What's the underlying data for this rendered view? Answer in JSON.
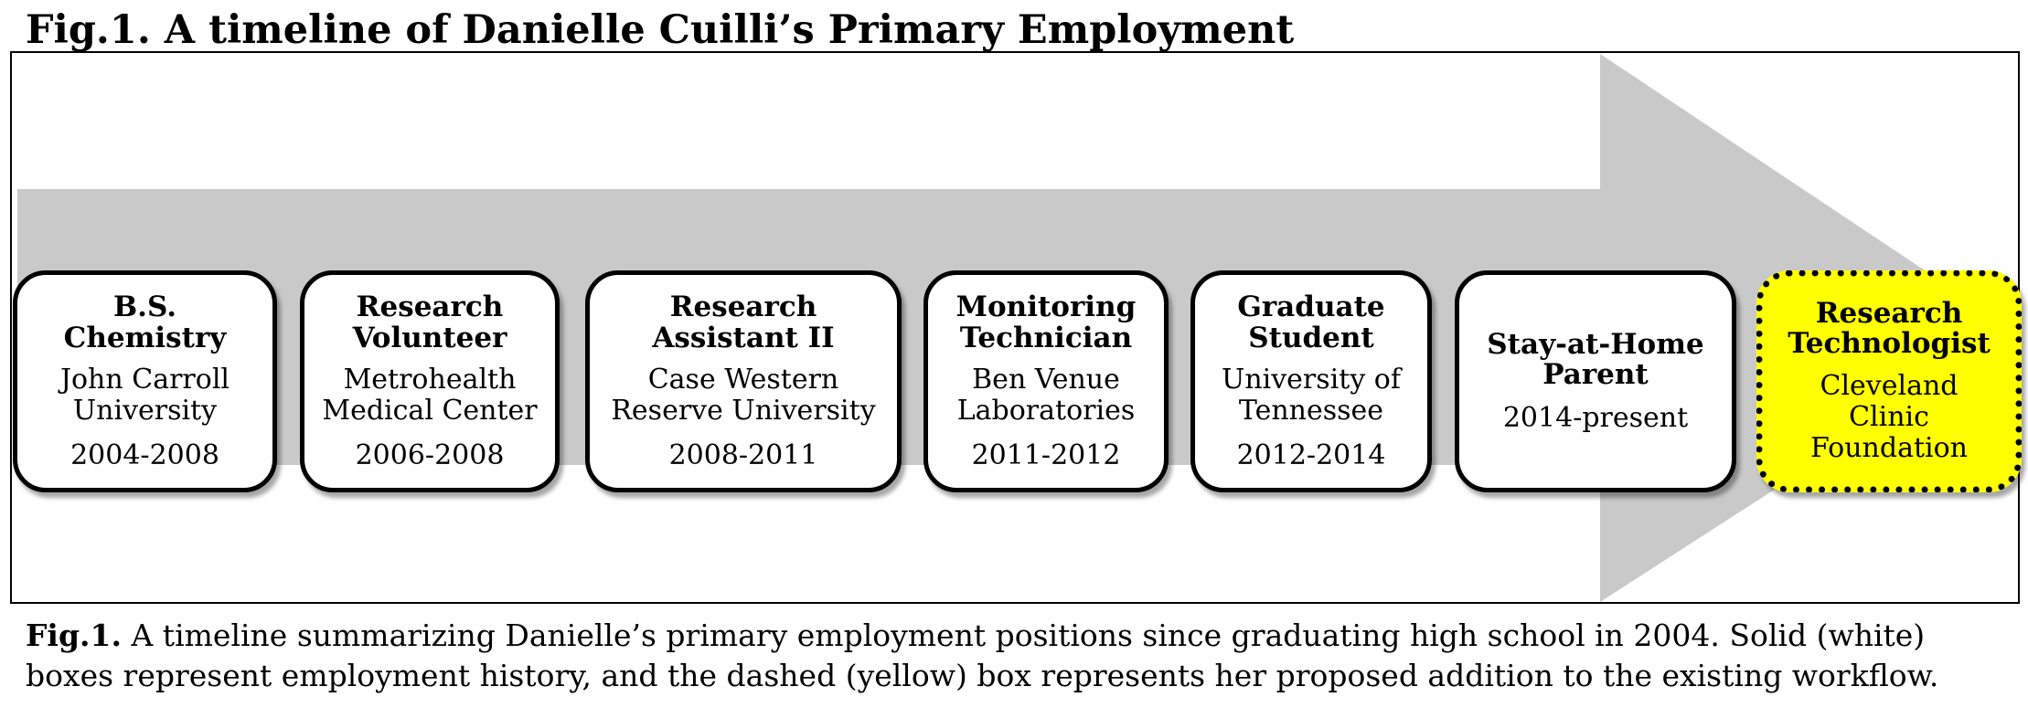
{
  "figure": {
    "title": "Fig.1. A timeline of Danielle Cuilli’s Primary Employment",
    "caption_lead": "Fig.1.",
    "caption_line1": "A timeline summarizing Danielle’s primary employment positions since graduating high school in 2004.  Solid (white)",
    "caption_line2": "boxes represent employment history, and the dashed (yellow) box represents her proposed addition to the existing workflow."
  },
  "colors": {
    "arrow_fill": "#c9c9c9",
    "history_box_fill": "#ffffff",
    "proposed_box_fill": "#ffff00",
    "border": "#000000"
  },
  "timeline": [
    {
      "role": "B.S. Chemistry",
      "organization": "John Carroll University",
      "dates": "2004-2008",
      "status": "history"
    },
    {
      "role": "Research Volunteer",
      "organization": "Metrohealth Medical Center",
      "dates": "2006-2008",
      "status": "history"
    },
    {
      "role": "Research Assistant II",
      "organization": "Case Western Reserve University",
      "dates": "2008-2011",
      "status": "history"
    },
    {
      "role": "Monitoring Technician",
      "organization": "Ben Venue Laboratories",
      "dates": "2011-2012",
      "status": "history"
    },
    {
      "role": "Graduate Student",
      "organization": "University of Tennessee",
      "dates": "2012-2014",
      "status": "history"
    },
    {
      "role": "Stay-at-Home Parent",
      "organization": "",
      "dates": "2014-present",
      "status": "history"
    },
    {
      "role": "Research Technologist",
      "organization": "Cleveland Clinic Foundation",
      "dates": "",
      "status": "proposed"
    }
  ]
}
